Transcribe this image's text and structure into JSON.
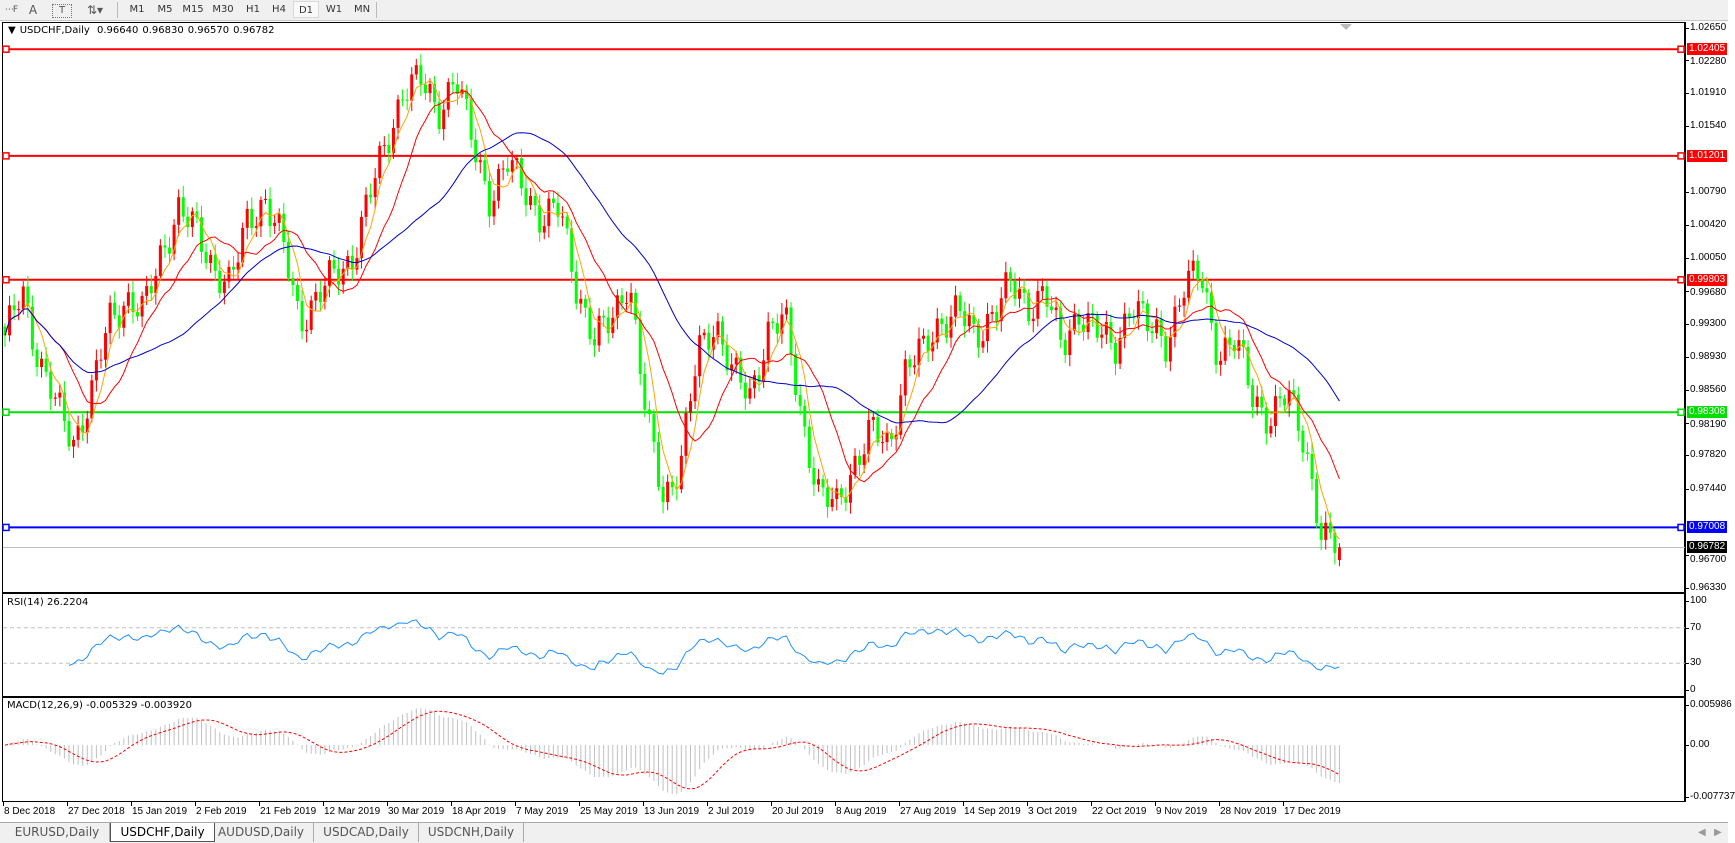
{
  "toolbar": {
    "icons": [
      "fibonacci-fan-icon",
      "text-icon",
      "text-label-icon",
      "arrows-icon"
    ],
    "text_icon_glyph": "A",
    "label_icon_glyph": "T",
    "timeframes": [
      "M1",
      "M5",
      "M15",
      "M30",
      "H1",
      "H4",
      "D1",
      "W1",
      "MN"
    ],
    "active_timeframe": "D1"
  },
  "chart": {
    "symbol": "USDCHF,Daily",
    "open": "0.96640",
    "high": "0.96830",
    "low": "0.96570",
    "close": "0.96782"
  },
  "chart_data": {
    "type": "candlestick",
    "ylim": [
      0.9633,
      1.0265
    ],
    "up_color": "#ff0000",
    "down_color": "#00ff00",
    "price_ticks": [
      "1.02650",
      "1.02280",
      "1.01910",
      "1.01540",
      "1.00790",
      "1.00420",
      "1.00050",
      "0.99680",
      "0.99300",
      "0.98930",
      "0.98560",
      "0.98190",
      "0.97820",
      "0.97440",
      "0.96700",
      "0.96330"
    ],
    "time_ticks": [
      "8 Dec 2018",
      "27 Dec 2018",
      "15 Jan 2019",
      "2 Feb 2019",
      "21 Feb 2019",
      "12 Mar 2019",
      "30 Mar 2019",
      "18 Apr 2019",
      "7 May 2019",
      "25 May 2019",
      "13 Jun 2019",
      "2 Jul 2019",
      "20 Jul 2019",
      "8 Aug 2019",
      "27 Aug 2019",
      "14 Sep 2019",
      "3 Oct 2019",
      "22 Oct 2019",
      "9 Nov 2019",
      "28 Nov 2019",
      "17 Dec 2019"
    ],
    "approx_closes": [
      0.991,
      0.9973,
      0.9885,
      0.9836,
      0.98,
      0.985,
      0.9935,
      0.996,
      0.9942,
      1.001,
      1.006,
      1.0035,
      0.9997,
      0.9973,
      1.0047,
      1.0072,
      1.0022,
      0.9935,
      0.996,
      0.9985,
      1.0004,
      1.0072,
      1.0134,
      1.0197,
      1.0203,
      1.0172,
      1.0209,
      1.0134,
      1.0072,
      1.011,
      1.0085,
      1.0047,
      1.006,
      0.9973,
      0.991,
      0.9935,
      0.9985,
      0.9823,
      0.9736,
      0.9774,
      0.9898,
      0.9935,
      0.9873,
      0.9848,
      0.9923,
      0.9935,
      0.9823,
      0.9736,
      0.9724,
      0.9774,
      0.981,
      0.979,
      0.9885,
      0.9898,
      0.9935,
      0.9948,
      0.991,
      0.9948,
      0.9973,
      0.9948,
      0.9973,
      0.9898,
      0.9948,
      0.9923,
      0.9898,
      0.996,
      0.9923,
      0.991,
      0.9973,
      0.9985,
      0.9898,
      0.991,
      0.985,
      0.9823,
      0.985,
      0.98,
      0.9686,
      0.96782
    ],
    "moving_averages": [
      {
        "color": "#ffa500"
      },
      {
        "color": "#ff0000"
      },
      {
        "color": "#0000c8"
      }
    ],
    "horizontal_lines": [
      {
        "price": "1.02405",
        "color": "#ff0000"
      },
      {
        "price": "1.01201",
        "color": "#ff0000"
      },
      {
        "price": "0.99803",
        "color": "#ff0000"
      },
      {
        "price": "0.98308",
        "color": "#00e000"
      },
      {
        "price": "0.97008",
        "color": "#0000ff"
      }
    ],
    "bid_line": {
      "price": "0.96782",
      "color": "#000000"
    },
    "rsi": {
      "label": "RSI(14) 26.2204",
      "ticks": [
        "100",
        "70",
        "30",
        "0"
      ],
      "levels": [
        70,
        30
      ],
      "color": "#1e90ff"
    },
    "macd": {
      "label": "MACD(12,26,9) -0.005329 -0.003920",
      "ticks": [
        "0.005986",
        "0.00",
        "-0.007737"
      ],
      "range": [
        -0.007737,
        0.005986
      ],
      "histogram_color": "#c0c0c0",
      "signal_color": "#ff0000"
    }
  },
  "tabs": [
    "EURUSD,Daily",
    "USDCHF,Daily",
    "AUDUSD,Daily",
    "USDCAD,Daily",
    "USDCNH,Daily"
  ],
  "active_tab": "USDCHF,Daily",
  "scroll": {
    "left": "◀",
    "right": "▶"
  }
}
